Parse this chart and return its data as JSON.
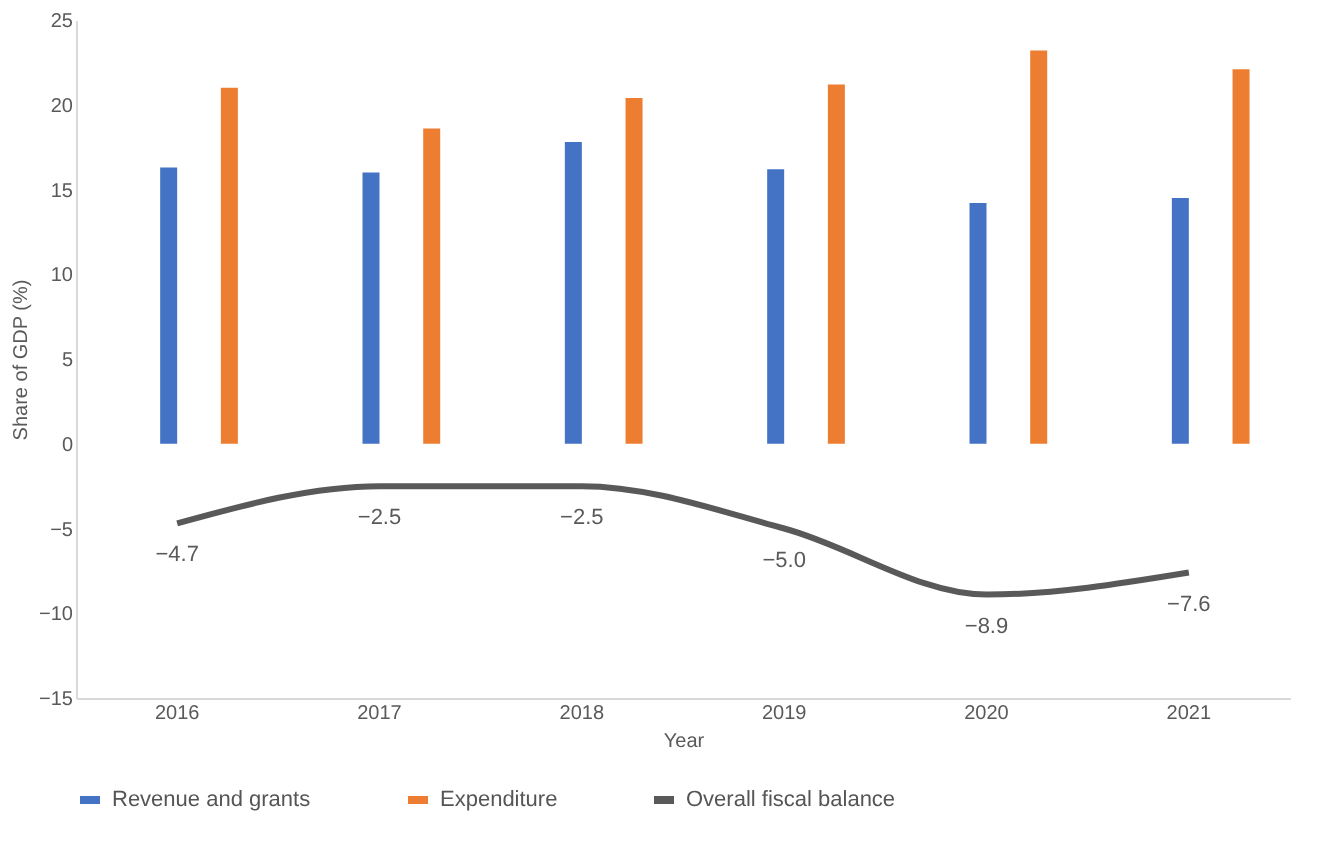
{
  "chart_data": {
    "type": "bar",
    "xlabel": "Year",
    "ylabel": "Share of GDP (%)",
    "categories": [
      "2016",
      "2017",
      "2018",
      "2019",
      "2020",
      "2021"
    ],
    "series": [
      {
        "name": "Revenue and grants",
        "color": "#4472c4",
        "values": [
          16.3,
          16.0,
          17.8,
          16.2,
          14.2,
          14.5
        ]
      },
      {
        "name": "Expenditure",
        "color": "#ed7d31",
        "values": [
          21.0,
          18.6,
          20.4,
          21.2,
          23.2,
          22.1
        ]
      },
      {
        "name": "Overall fiscal balance",
        "type": "line",
        "color": "#595959",
        "values": [
          -4.7,
          -2.5,
          -2.5,
          -5.0,
          -8.9,
          -7.6
        ],
        "value_labels": [
          "−4.7",
          "−2.5",
          "−2.5",
          "−5.0",
          "−8.9",
          "−7.6"
        ]
      }
    ],
    "ylim": [
      -15,
      25
    ],
    "yticks": [
      -15,
      -10,
      -5,
      0,
      5,
      10,
      15,
      20,
      25
    ],
    "grid": false,
    "legend": "bottom"
  }
}
